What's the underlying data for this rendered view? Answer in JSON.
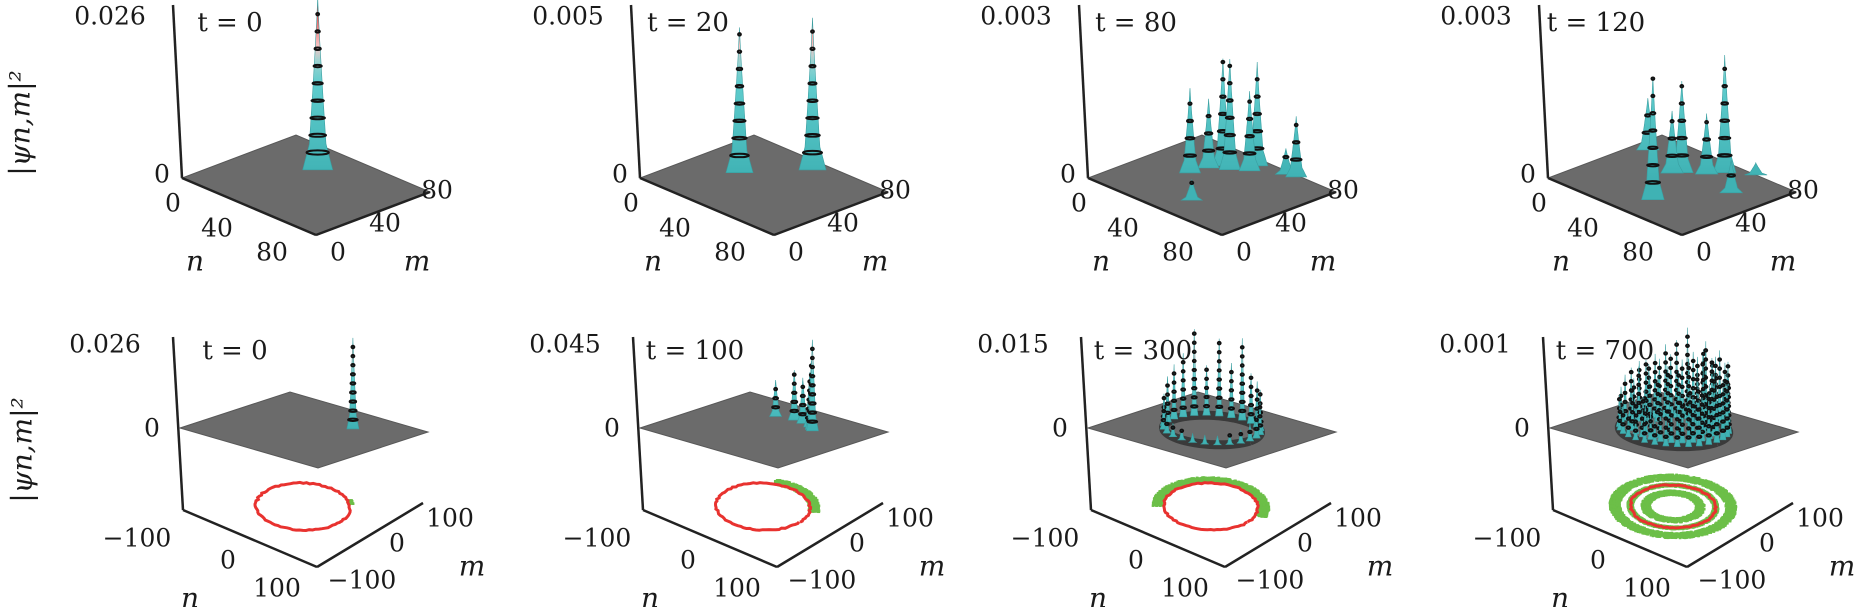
{
  "colors": {
    "plane": "#6b6b6b",
    "peak_low": "#55c3c4",
    "peak_high": "#e5262b",
    "contour": "#111111",
    "ring_red": "#e8322f",
    "ring_green": "#6cbf48"
  },
  "chart_data": [
    {
      "type": "surface3d",
      "title": "t = 0",
      "z_max_label": "0.026",
      "z_min_label": "0",
      "z_range": [
        0,
        0.026
      ],
      "zlabel": "|ψn,m|²",
      "n_label": "n",
      "m_label": "m",
      "n_ticks": [
        "0",
        "40",
        "80"
      ],
      "m_ticks": [
        "0",
        "40",
        "80"
      ],
      "n_range": [
        0,
        100
      ],
      "m_range": [
        0,
        100
      ],
      "peaks_n_m_relheight": [
        [
          40,
          72,
          1.0
        ]
      ]
    },
    {
      "type": "surface3d",
      "title": "t = 20",
      "z_max_label": "0.005",
      "z_min_label": "0",
      "z_range": [
        0,
        0.005
      ],
      "n_label": "n",
      "m_label": "m",
      "n_ticks": [
        "0",
        "40",
        "80"
      ],
      "m_ticks": [
        "0",
        "40",
        "80"
      ],
      "n_range": [
        0,
        100
      ],
      "m_range": [
        0,
        100
      ],
      "peaks_n_m_relheight": [
        [
          30,
          52,
          0.84
        ],
        [
          53,
          89,
          0.88
        ]
      ]
    },
    {
      "type": "surface3d",
      "title": "t = 80",
      "z_max_label": "0.003",
      "z_min_label": "0",
      "z_range": [
        0,
        0.003
      ],
      "n_label": "n",
      "m_label": "m",
      "n_ticks": [
        "0",
        "40",
        "80"
      ],
      "m_ticks": [
        "0",
        "40",
        "80"
      ],
      "n_range": [
        0,
        100
      ],
      "m_range": [
        0,
        100
      ],
      "peaks_n_m_relheight": [
        [
          31,
          53,
          0.49
        ],
        [
          33,
          67,
          0.4
        ],
        [
          36,
          76,
          0.62
        ],
        [
          42,
          75,
          0.64
        ],
        [
          50,
          83,
          0.46
        ],
        [
          48,
          92,
          0.6
        ],
        [
          72,
          98,
          0.35
        ],
        [
          57,
          24,
          0.12
        ],
        [
          66,
          96,
          0.15
        ]
      ]
    },
    {
      "type": "surface3d",
      "title": "t = 120",
      "z_max_label": "0.003",
      "z_min_label": "0",
      "z_range": [
        0,
        0.003
      ],
      "n_label": "n",
      "m_label": "m",
      "n_ticks": [
        "0",
        "40",
        "80"
      ],
      "m_ticks": [
        "0",
        "40",
        "80"
      ],
      "n_range": [
        0,
        100
      ],
      "m_range": [
        0,
        100
      ],
      "peaks_n_m_relheight": [
        [
          9,
          77,
          0.3
        ],
        [
          39,
          63,
          0.36
        ],
        [
          42,
          68,
          0.53
        ],
        [
          52,
          78,
          0.35
        ],
        [
          57,
          88,
          0.68
        ],
        [
          57,
          25,
          0.71
        ],
        [
          78,
          69,
          0.19
        ],
        [
          70,
          100,
          0.07
        ]
      ]
    },
    {
      "type": "surface3d",
      "title": "t = 0",
      "z_max_label": "0.026",
      "z_min_label": "0",
      "z_range": [
        0,
        0.026
      ],
      "zlabel": "|ψn,m|²",
      "n_label": "n",
      "m_label": "m",
      "n_ticks": [
        "−100",
        "0",
        "100"
      ],
      "m_ticks": [
        "−100",
        "0",
        "100"
      ],
      "n_range": [
        -100,
        100
      ],
      "m_range": [
        -100,
        100
      ],
      "peaks_n_m_relheight": [
        [
          35,
          45,
          1.0
        ]
      ],
      "floor": {
        "red_ring_radius": 55,
        "green": [
          {
            "radius": 57,
            "from_deg": 48,
            "to_deg": 56,
            "spread": 3
          }
        ]
      }
    },
    {
      "type": "surface3d",
      "title": "t = 100",
      "z_max_label": "0.045",
      "z_min_label": "0",
      "z_range": [
        0,
        0.045
      ],
      "n_label": "n",
      "m_label": "m",
      "n_ticks": [
        "−100",
        "0",
        "100"
      ],
      "m_ticks": [
        "−100",
        "0",
        "100"
      ],
      "n_range": [
        -100,
        100
      ],
      "m_range": [
        -100,
        100
      ],
      "peaks_n_m_relheight": [
        [
          -23,
          50,
          0.4
        ],
        [
          0,
          55,
          0.55
        ],
        [
          14,
          53,
          0.5
        ],
        [
          28,
          48,
          0.6
        ],
        [
          35,
          42,
          0.75
        ],
        [
          39,
          39,
          1.0
        ]
      ],
      "floor": {
        "red_ring_radius": 55,
        "green": [
          {
            "radius": 60,
            "from_deg": 30,
            "to_deg": 115,
            "spread": 6
          }
        ]
      }
    },
    {
      "type": "surface3d",
      "title": "t = 300",
      "z_max_label": "0.015",
      "z_min_label": "0",
      "z_range": [
        0,
        0.015
      ],
      "n_label": "n",
      "m_label": "m",
      "n_ticks": [
        "−100",
        "0",
        "100"
      ],
      "m_ticks": [
        "−100",
        "0",
        "100"
      ],
      "n_range": [
        -100,
        100
      ],
      "m_range": [
        -100,
        100
      ],
      "ring_peaks": [
        {
          "radius": 55,
          "from_deg": -180,
          "step_deg": 15,
          "heights": [
            0.6,
            0.5,
            0.35,
            0.3,
            0.2,
            0.15,
            0.12,
            0.1,
            0.1,
            0.1,
            0.12,
            0.15,
            0.2,
            0.3,
            0.35,
            0.45,
            0.5,
            0.55,
            0.9,
            0.6,
            0.85,
            0.55,
            0.95,
            0.7
          ]
        }
      ],
      "plane_shadow_radius": 55,
      "floor": {
        "red_ring_radius": 55,
        "green": [
          {
            "radius": 62,
            "from_deg": 20,
            "to_deg": 220,
            "spread": 6
          }
        ]
      }
    },
    {
      "type": "surface3d",
      "title": "t = 700",
      "z_max_label": "0.001",
      "z_min_label": "0",
      "z_range": [
        0,
        0.001
      ],
      "n_label": "n",
      "m_label": "m",
      "n_ticks": [
        "−100",
        "0",
        "100"
      ],
      "m_ticks": [
        "−100",
        "0",
        "100"
      ],
      "n_range": [
        -100,
        100
      ],
      "m_range": [
        -100,
        100
      ],
      "ring_peaks": [
        {
          "radius": 35,
          "from_deg": -180,
          "step_deg": 20,
          "heights": [
            0.5,
            0.4,
            0.35,
            0.3,
            0.3,
            0.35,
            0.4,
            0.5,
            0.55,
            0.6,
            0.7,
            0.65,
            0.8,
            0.6,
            0.7,
            0.55,
            0.6,
            0.5
          ]
        },
        {
          "radius": 48,
          "from_deg": -175,
          "step_deg": 15,
          "heights": [
            0.6,
            0.5,
            0.45,
            0.4,
            0.35,
            0.3,
            0.3,
            0.35,
            0.4,
            0.45,
            0.5,
            0.55,
            0.6,
            0.7,
            0.65,
            0.8,
            0.75,
            0.9,
            0.7,
            1.0,
            0.85,
            0.8,
            0.7,
            0.65
          ]
        },
        {
          "radius": 62,
          "from_deg": -180,
          "step_deg": 12,
          "heights": [
            0.55,
            0.5,
            0.4,
            0.35,
            0.3,
            0.3,
            0.25,
            0.25,
            0.3,
            0.3,
            0.35,
            0.4,
            0.45,
            0.5,
            0.55,
            0.6,
            0.65,
            0.7,
            0.6,
            0.75,
            0.7,
            0.8,
            0.65,
            0.75,
            0.7,
            0.6,
            0.65,
            0.6,
            0.55,
            0.6
          ]
        }
      ],
      "plane_shadow_radius": 62,
      "floor": {
        "red_ring_radius": 50,
        "green": [
          {
            "radius": 32,
            "from_deg": 0,
            "to_deg": 360,
            "spread": 5
          },
          {
            "radius": 50,
            "from_deg": 0,
            "to_deg": 360,
            "spread": 3
          },
          {
            "radius": 68,
            "from_deg": 0,
            "to_deg": 360,
            "spread": 6
          }
        ]
      }
    }
  ]
}
